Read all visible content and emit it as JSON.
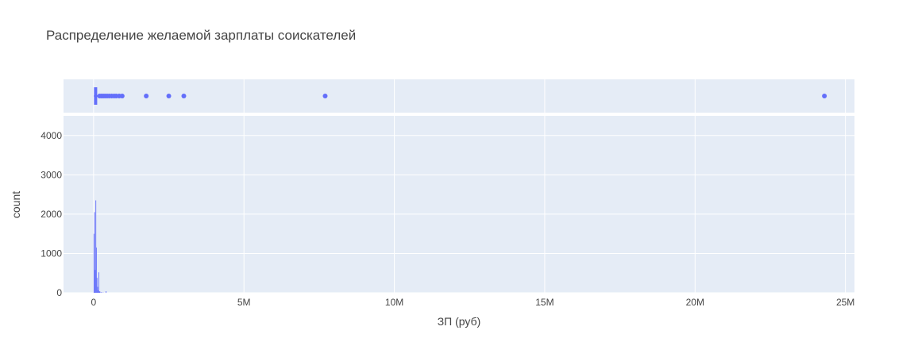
{
  "chart_data": {
    "type": "bar",
    "title": "Распределение желаемой зарплаты соискателей",
    "xlabel": "ЗП (руб)",
    "ylabel": "count",
    "xlim": [
      -1000000,
      25300000
    ],
    "ylim": [
      0,
      4500
    ],
    "x_ticks": [
      {
        "value": 0,
        "label": "0"
      },
      {
        "value": 5000000,
        "label": "5M"
      },
      {
        "value": 10000000,
        "label": "10M"
      },
      {
        "value": 15000000,
        "label": "15M"
      },
      {
        "value": 20000000,
        "label": "20M"
      },
      {
        "value": 25000000,
        "label": "25M"
      }
    ],
    "y_ticks": [
      {
        "value": 0,
        "label": "0"
      },
      {
        "value": 1000,
        "label": "1000"
      },
      {
        "value": 2000,
        "label": "2000"
      },
      {
        "value": 3000,
        "label": "3000"
      },
      {
        "value": 4000,
        "label": "4000"
      }
    ],
    "histogram": {
      "bin_width": 20000,
      "bins": [
        {
          "x": 0,
          "count": 1500
        },
        {
          "x": 20000,
          "count": 2050
        },
        {
          "x": 40000,
          "count": 580
        },
        {
          "x": 60000,
          "count": 2350
        },
        {
          "x": 80000,
          "count": 1150
        },
        {
          "x": 100000,
          "count": 380
        },
        {
          "x": 120000,
          "count": 150
        },
        {
          "x": 140000,
          "count": 60
        },
        {
          "x": 160000,
          "count": 520
        },
        {
          "x": 180000,
          "count": 40
        },
        {
          "x": 200000,
          "count": 30
        },
        {
          "x": 240000,
          "count": 15
        },
        {
          "x": 300000,
          "count": 10
        },
        {
          "x": 400000,
          "count": 40
        }
      ]
    },
    "box": {
      "q1": 40000,
      "median": 60000,
      "q3": 90000,
      "lower_fence": 10000,
      "upper_fence": 160000
    },
    "outliers": [
      200000,
      260000,
      320000,
      380000,
      450000,
      520000,
      600000,
      680000,
      750000,
      850000,
      950000,
      1750000,
      2500000,
      3000000,
      7700000,
      24300000
    ],
    "colors": {
      "series": "#636efa",
      "plot_bg": "#e5ecf6",
      "grid": "#ffffff",
      "text": "#444444",
      "title": "#444444"
    }
  }
}
